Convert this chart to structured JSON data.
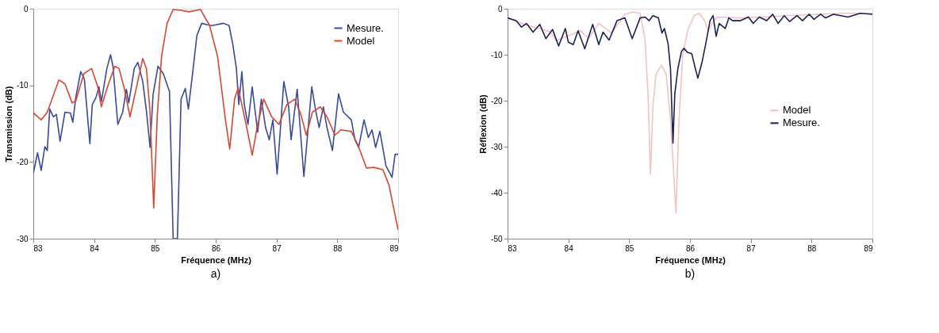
{
  "chart_data": [
    {
      "type": "line",
      "xlabel": "Fréquence (MHz)",
      "ylabel": "Transmission (dB)",
      "annotations": [
        "a)"
      ],
      "xlim": [
        83,
        89
      ],
      "xticks": [
        83,
        84,
        85,
        86,
        87,
        88,
        89
      ],
      "ylim": [
        -30,
        0
      ],
      "yticks": [
        -30,
        -20,
        -10,
        0
      ],
      "grid": false,
      "legend": "top right",
      "marker": "none",
      "line_style": "solid",
      "series": [
        {
          "name": "Mesure.",
          "color": "#3a4a9c",
          "x": [
            83.0,
            83.07,
            83.13,
            83.19,
            83.23,
            83.27,
            83.33,
            83.38,
            83.44,
            83.52,
            83.61,
            83.65,
            83.7,
            83.78,
            83.84,
            83.93,
            83.97,
            84.03,
            84.08,
            84.12,
            84.21,
            84.27,
            84.31,
            84.39,
            84.47,
            84.53,
            84.57,
            84.66,
            84.72,
            84.8,
            84.86,
            84.92,
            84.97,
            85.05,
            85.14,
            85.24,
            85.3,
            85.37,
            85.43,
            85.5,
            85.55,
            85.61,
            85.69,
            85.77,
            85.86,
            85.94,
            86.13,
            86.22,
            86.28,
            86.34,
            86.38,
            86.43,
            86.47,
            86.53,
            86.6,
            86.64,
            86.69,
            86.75,
            86.82,
            86.88,
            86.94,
            87.01,
            87.12,
            87.2,
            87.24,
            87.34,
            87.45,
            87.58,
            87.64,
            87.7,
            87.77,
            87.83,
            87.92,
            88.02,
            88.1,
            88.23,
            88.29,
            88.35,
            88.44,
            88.51,
            88.57,
            88.63,
            88.7,
            88.8,
            88.9,
            88.95,
            89.0
          ],
          "values": [
            -21.5,
            -18.8,
            -21.1,
            -18.0,
            -18.5,
            -13.1,
            -14.1,
            -13.8,
            -17.3,
            -13.5,
            -13.6,
            -14.8,
            -11.5,
            -8.2,
            -9.2,
            -17.6,
            -12.5,
            -11.6,
            -10.2,
            -12.1,
            -7.8,
            -6.0,
            -7.5,
            -15.1,
            -13.5,
            -10.5,
            -12.3,
            -7.8,
            -7.0,
            -9.5,
            -13.3,
            -18.1,
            -11.2,
            -7.5,
            -8.5,
            -10.8,
            -30,
            -30,
            -11.8,
            -10.4,
            -13.1,
            -9.1,
            -3.5,
            -1.9,
            -2.1,
            -2.2,
            -1.9,
            -2.2,
            -4.6,
            -7.8,
            -12.5,
            -8.2,
            -12.5,
            -15.1,
            -10.2,
            -12.8,
            -16.1,
            -11.8,
            -15.5,
            -17.1,
            -14.5,
            -21.6,
            -9.5,
            -12.8,
            -17.1,
            -10.5,
            -21.9,
            -10.2,
            -13.1,
            -15.5,
            -12.8,
            -15.5,
            -18.5,
            -11.1,
            -13.5,
            -14.5,
            -17.1,
            -18.1,
            -14.5,
            -16.8,
            -15.8,
            -18.1,
            -16.0,
            -20.5,
            -22.0,
            -19.0,
            -19.0
          ]
        },
        {
          "name": "Model",
          "color": "#d9482e",
          "x": [
            83.0,
            83.13,
            83.23,
            83.42,
            83.52,
            83.64,
            83.7,
            83.83,
            83.96,
            84.06,
            84.12,
            84.22,
            84.34,
            84.41,
            84.5,
            84.59,
            84.69,
            84.8,
            84.86,
            84.92,
            84.98,
            85.04,
            85.11,
            85.2,
            85.3,
            85.43,
            85.56,
            85.75,
            85.9,
            86.03,
            86.16,
            86.23,
            86.31,
            86.37,
            86.5,
            86.6,
            86.69,
            86.79,
            86.92,
            87.04,
            87.17,
            87.3,
            87.4,
            87.49,
            87.59,
            87.72,
            87.83,
            87.96,
            88.06,
            88.23,
            88.34,
            88.48,
            88.6,
            88.75,
            88.85,
            89.0
          ],
          "values": [
            -13.6,
            -14.5,
            -13.5,
            -9.3,
            -9.8,
            -12.3,
            -12.0,
            -8.5,
            -7.8,
            -10.2,
            -12.8,
            -10.2,
            -7.5,
            -7.8,
            -10.5,
            -14.1,
            -10.5,
            -6.5,
            -7.8,
            -13.5,
            -26.0,
            -13.8,
            -6.2,
            -1.9,
            -0.1,
            -0.2,
            -0.4,
            -0.1,
            -2.2,
            -6.2,
            -14.5,
            -18.3,
            -11.8,
            -10.3,
            -15.1,
            -19.1,
            -15.1,
            -11.8,
            -14.1,
            -15.1,
            -12.5,
            -11.8,
            -13.8,
            -16.5,
            -13.5,
            -12.8,
            -14.1,
            -16.5,
            -15.8,
            -16.0,
            -17.8,
            -20.8,
            -20.7,
            -21.0,
            -23.0,
            -28.9
          ]
        }
      ]
    },
    {
      "type": "line",
      "xlabel": "Fréquence (MHz)",
      "ylabel": "Réflexion (dB)",
      "annotations": [
        "b)"
      ],
      "xlim": [
        83,
        89
      ],
      "xticks": [
        83,
        84,
        85,
        86,
        87,
        88,
        89
      ],
      "ylim": [
        -50,
        0
      ],
      "yticks": [
        -50,
        -40,
        -30,
        -20,
        -10,
        0
      ],
      "grid": false,
      "legend": "right",
      "marker": "none",
      "line_style": "solid",
      "series": [
        {
          "name": "Model",
          "color": "#f0c4c4",
          "x": [
            83.0,
            83.3,
            83.7,
            83.8,
            84.2,
            84.33,
            84.5,
            84.71,
            84.93,
            85.07,
            85.18,
            85.26,
            85.31,
            85.35,
            85.39,
            85.44,
            85.53,
            85.61,
            85.68,
            85.77,
            85.82,
            85.88,
            85.96,
            86.07,
            86.15,
            86.24,
            86.3,
            86.37,
            86.44,
            86.8,
            87.2,
            87.6,
            88.0,
            88.5,
            89.0
          ],
          "values": [
            -2.0,
            -3.5,
            -5.0,
            -7.0,
            -4.8,
            -6.5,
            -3.2,
            -5.3,
            -1.2,
            -0.7,
            -1.0,
            -6.5,
            -18.6,
            -36.0,
            -21.4,
            -14.3,
            -12.3,
            -14.3,
            -24.2,
            -44.4,
            -24.2,
            -10.3,
            -4.8,
            -1.5,
            -1.0,
            -2.6,
            -4.8,
            -3.2,
            -1.8,
            -2.0,
            -1.8,
            -1.5,
            -1.3,
            -1.0,
            -1.0
          ]
        },
        {
          "name": "Mesure.",
          "color": "#1e2250",
          "x": [
            83.0,
            83.14,
            83.23,
            83.31,
            83.42,
            83.53,
            83.63,
            83.74,
            83.84,
            83.95,
            84.0,
            84.08,
            84.16,
            84.27,
            84.4,
            84.5,
            84.57,
            84.67,
            84.8,
            84.93,
            85.05,
            85.18,
            85.26,
            85.33,
            85.39,
            85.48,
            85.54,
            85.58,
            85.64,
            85.68,
            85.72,
            85.75,
            85.8,
            85.86,
            85.9,
            85.96,
            86.03,
            86.09,
            86.13,
            86.2,
            86.26,
            86.33,
            86.38,
            86.43,
            86.48,
            86.58,
            86.64,
            86.7,
            86.83,
            86.96,
            87.04,
            87.14,
            87.26,
            87.36,
            87.45,
            87.55,
            87.64,
            87.76,
            87.85,
            87.96,
            88.04,
            88.15,
            88.23,
            88.36,
            88.6,
            88.8,
            89.0
          ],
          "values": [
            -2.0,
            -2.6,
            -4.0,
            -3.2,
            -5.1,
            -3.4,
            -6.5,
            -4.5,
            -8.1,
            -4.3,
            -7.3,
            -7.8,
            -4.8,
            -8.7,
            -3.4,
            -7.8,
            -5.1,
            -6.8,
            -2.6,
            -2.0,
            -6.5,
            -2.0,
            -1.8,
            -2.6,
            -1.5,
            -2.0,
            -5.3,
            -4.3,
            -7.6,
            -13.1,
            -29.2,
            -18.6,
            -13.1,
            -9.3,
            -8.6,
            -9.5,
            -9.8,
            -13.1,
            -15.1,
            -11.5,
            -7.6,
            -2.6,
            -1.5,
            -6.0,
            -3.2,
            -4.3,
            -2.0,
            -2.6,
            -2.6,
            -1.8,
            -3.2,
            -1.8,
            -2.6,
            -1.2,
            -3.2,
            -1.5,
            -2.8,
            -1.5,
            -2.6,
            -1.2,
            -2.3,
            -1.2,
            -2.0,
            -1.2,
            -1.8,
            -1.0,
            -1.2
          ]
        }
      ]
    }
  ]
}
